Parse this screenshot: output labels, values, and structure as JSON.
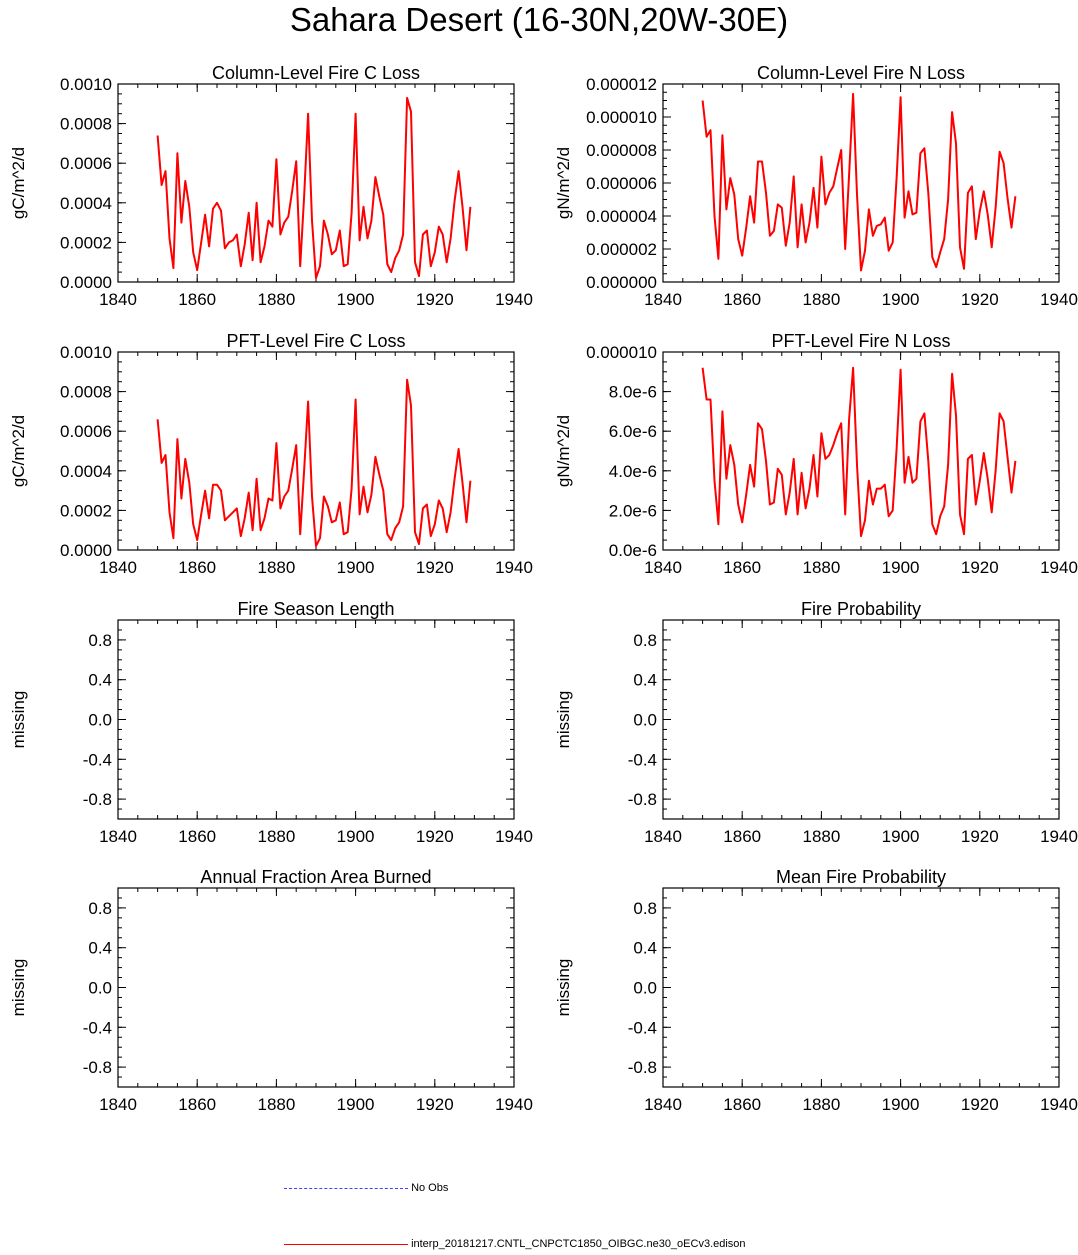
{
  "figure": {
    "title": "Sahara Desert (16-30N,20W-30E)"
  },
  "legend": {
    "items": [
      {
        "label": "No Obs",
        "style": "dashed",
        "color": "#4040ff"
      },
      {
        "label": "interp_20181217.CNTL_CNPCTC1850_OIBGC.ne30_oECv3.edison",
        "style": "solid",
        "color": "#ff0000"
      }
    ]
  },
  "chart_data": [
    {
      "type": "line",
      "title": "Column-Level Fire C Loss",
      "ylabel": "gC/m^2/d",
      "xlim": [
        1840,
        1940
      ],
      "ylim": [
        0,
        0.001
      ],
      "xticks": [
        1840,
        1860,
        1880,
        1900,
        1920,
        1940
      ],
      "xtick_labels": [
        "1840",
        "1860",
        "1880",
        "1900",
        "1920",
        "1940"
      ],
      "yticks": [
        0,
        0.0002,
        0.0004,
        0.0006,
        0.0008,
        0.001
      ],
      "ytick_labels": [
        "0.0000",
        "0.0002",
        "0.0004",
        "0.0006",
        "0.0008",
        "0.0010"
      ],
      "series": [
        {
          "name": "interp_20181217.CNTL_CNPCTC1850_OIBGC.ne30_oECv3.edison",
          "color": "#ff0000",
          "x": [
            1850,
            1851,
            1852,
            1853,
            1854,
            1855,
            1856,
            1857,
            1858,
            1859,
            1860,
            1861,
            1862,
            1863,
            1864,
            1865,
            1866,
            1867,
            1868,
            1869,
            1870,
            1871,
            1872,
            1873,
            1874,
            1875,
            1876,
            1877,
            1878,
            1879,
            1880,
            1881,
            1882,
            1883,
            1884,
            1885,
            1886,
            1887,
            1888,
            1889,
            1890,
            1891,
            1892,
            1893,
            1894,
            1895,
            1896,
            1897,
            1898,
            1899,
            1900,
            1901,
            1902,
            1903,
            1904,
            1905,
            1906,
            1907,
            1908,
            1909,
            1910,
            1911,
            1912,
            1913,
            1914,
            1915,
            1916,
            1917,
            1918,
            1919,
            1920,
            1921,
            1922,
            1923,
            1924,
            1925,
            1926,
            1927,
            1928,
            1929
          ],
          "values": [
            0.00074,
            0.00049,
            0.00056,
            0.00022,
            7e-05,
            0.00065,
            0.0003,
            0.00051,
            0.00038,
            0.00015,
            6e-05,
            0.0002,
            0.00034,
            0.00018,
            0.00037,
            0.0004,
            0.00036,
            0.00017,
            0.0002,
            0.00021,
            0.00024,
            8e-05,
            0.00019,
            0.00035,
            0.00011,
            0.0004,
            0.0001,
            0.00018,
            0.00031,
            0.00028,
            0.00062,
            0.00024,
            0.0003,
            0.00033,
            0.00046,
            0.00061,
            8e-05,
            0.00043,
            0.00085,
            0.00031,
            2e-05,
            8e-05,
            0.00031,
            0.00024,
            0.00014,
            0.00016,
            0.00026,
            8e-05,
            9e-05,
            0.00035,
            0.00085,
            0.00021,
            0.00038,
            0.00022,
            0.00031,
            0.00053,
            0.00043,
            0.00034,
            9e-05,
            5e-05,
            0.00012,
            0.00016,
            0.00024,
            0.00093,
            0.00086,
            0.0001,
            3e-05,
            0.00024,
            0.00026,
            8e-05,
            0.00015,
            0.00028,
            0.00024,
            0.0001,
            0.00022,
            0.00041,
            0.00056,
            0.00038,
            0.00016,
            0.00038
          ]
        }
      ]
    },
    {
      "type": "line",
      "title": "Column-Level Fire N Loss",
      "ylabel": "gN/m^2/d",
      "xlim": [
        1840,
        1940
      ],
      "ylim": [
        0,
        1.2e-05
      ],
      "xticks": [
        1840,
        1860,
        1880,
        1900,
        1920,
        1940
      ],
      "xtick_labels": [
        "1840",
        "1860",
        "1880",
        "1900",
        "1920",
        "1940"
      ],
      "yticks": [
        0,
        2e-06,
        4e-06,
        6e-06,
        8e-06,
        1e-05,
        1.2e-05
      ],
      "ytick_labels": [
        "0.000000",
        "0.000002",
        "0.000004",
        "0.000006",
        "0.000008",
        "0.000010",
        "0.000012"
      ],
      "series": [
        {
          "name": "interp_20181217.CNTL_CNPCTC1850_OIBGC.ne30_oECv3.edison",
          "color": "#ff0000",
          "x": [
            1850,
            1851,
            1852,
            1853,
            1854,
            1855,
            1856,
            1857,
            1858,
            1859,
            1860,
            1861,
            1862,
            1863,
            1864,
            1865,
            1866,
            1867,
            1868,
            1869,
            1870,
            1871,
            1872,
            1873,
            1874,
            1875,
            1876,
            1877,
            1878,
            1879,
            1880,
            1881,
            1882,
            1883,
            1884,
            1885,
            1886,
            1887,
            1888,
            1889,
            1890,
            1891,
            1892,
            1893,
            1894,
            1895,
            1896,
            1897,
            1898,
            1899,
            1900,
            1901,
            1902,
            1903,
            1904,
            1905,
            1906,
            1907,
            1908,
            1909,
            1910,
            1911,
            1912,
            1913,
            1914,
            1915,
            1916,
            1917,
            1918,
            1919,
            1920,
            1921,
            1922,
            1923,
            1924,
            1925,
            1926,
            1927,
            1928,
            1929
          ],
          "values": [
            1.1e-05,
            8.8e-06,
            9.2e-06,
            4e-06,
            1.4e-06,
            8.9e-06,
            4.4e-06,
            6.3e-06,
            5.3e-06,
            2.6e-06,
            1.6e-06,
            3.3e-06,
            5.2e-06,
            3.6e-06,
            7.3e-06,
            7.3e-06,
            5.4e-06,
            2.8e-06,
            3.1e-06,
            4.7e-06,
            4.5e-06,
            2.2e-06,
            3.6e-06,
            6.4e-06,
            2.1e-06,
            4.7e-06,
            2.4e-06,
            3.6e-06,
            5.7e-06,
            3.3e-06,
            7.6e-06,
            4.7e-06,
            5.4e-06,
            5.8e-06,
            6.9e-06,
            8e-06,
            2e-06,
            6.5e-06,
            1.14e-05,
            5.3e-06,
            7e-07,
            1.9e-06,
            4.4e-06,
            2.8e-06,
            3.4e-06,
            3.5e-06,
            3.9e-06,
            1.9e-06,
            2.4e-06,
            6.3e-06,
            1.12e-05,
            3.9e-06,
            5.5e-06,
            4.1e-06,
            4.2e-06,
            7.8e-06,
            8.1e-06,
            5.4e-06,
            1.5e-06,
            9e-07,
            1.8e-06,
            2.6e-06,
            5e-06,
            1.03e-05,
            8.4e-06,
            2.1e-06,
            8e-07,
            5.4e-06,
            5.8e-06,
            2.6e-06,
            4.3e-06,
            5.5e-06,
            4.1e-06,
            2.1e-06,
            4.5e-06,
            7.9e-06,
            7.2e-06,
            5.1e-06,
            3.3e-06,
            5.2e-06
          ]
        }
      ]
    },
    {
      "type": "line",
      "title": "PFT-Level Fire C Loss",
      "ylabel": "gC/m^2/d",
      "xlim": [
        1840,
        1940
      ],
      "ylim": [
        0,
        0.001
      ],
      "xticks": [
        1840,
        1860,
        1880,
        1900,
        1920,
        1940
      ],
      "xtick_labels": [
        "1840",
        "1860",
        "1880",
        "1900",
        "1920",
        "1940"
      ],
      "yticks": [
        0,
        0.0002,
        0.0004,
        0.0006,
        0.0008,
        0.001
      ],
      "ytick_labels": [
        "0.0000",
        "0.0002",
        "0.0004",
        "0.0006",
        "0.0008",
        "0.0010"
      ],
      "series": [
        {
          "name": "interp_20181217.CNTL_CNPCTC1850_OIBGC.ne30_oECv3.edison",
          "color": "#ff0000",
          "x": [
            1850,
            1851,
            1852,
            1853,
            1854,
            1855,
            1856,
            1857,
            1858,
            1859,
            1860,
            1861,
            1862,
            1863,
            1864,
            1865,
            1866,
            1867,
            1868,
            1869,
            1870,
            1871,
            1872,
            1873,
            1874,
            1875,
            1876,
            1877,
            1878,
            1879,
            1880,
            1881,
            1882,
            1883,
            1884,
            1885,
            1886,
            1887,
            1888,
            1889,
            1890,
            1891,
            1892,
            1893,
            1894,
            1895,
            1896,
            1897,
            1898,
            1899,
            1900,
            1901,
            1902,
            1903,
            1904,
            1905,
            1906,
            1907,
            1908,
            1909,
            1910,
            1911,
            1912,
            1913,
            1914,
            1915,
            1916,
            1917,
            1918,
            1919,
            1920,
            1921,
            1922,
            1923,
            1924,
            1925,
            1926,
            1927,
            1928,
            1929
          ],
          "values": [
            0.00066,
            0.00044,
            0.00048,
            0.00019,
            6e-05,
            0.00056,
            0.00026,
            0.00046,
            0.00034,
            0.00013,
            5e-05,
            0.00018,
            0.0003,
            0.00016,
            0.00033,
            0.00033,
            0.0003,
            0.00015,
            0.00017,
            0.00019,
            0.00021,
            7e-05,
            0.00016,
            0.00029,
            0.0001,
            0.00036,
            0.0001,
            0.00016,
            0.00026,
            0.00025,
            0.00054,
            0.00021,
            0.00027,
            0.0003,
            0.00041,
            0.00053,
            8e-05,
            0.0004,
            0.00075,
            0.00027,
            2e-05,
            6e-05,
            0.00027,
            0.00022,
            0.00014,
            0.00015,
            0.00024,
            8e-05,
            9e-05,
            0.00031,
            0.00076,
            0.00018,
            0.00032,
            0.00019,
            0.00028,
            0.00047,
            0.00038,
            0.0003,
            8e-05,
            5e-05,
            0.00011,
            0.00014,
            0.00022,
            0.00086,
            0.00073,
            9e-05,
            3e-05,
            0.00021,
            0.00023,
            7e-05,
            0.00013,
            0.00025,
            0.00021,
            9e-05,
            0.00019,
            0.00036,
            0.00051,
            0.00034,
            0.00014,
            0.00035
          ]
        }
      ]
    },
    {
      "type": "line",
      "title": "PFT-Level Fire N Loss",
      "ylabel": "gN/m^2/d",
      "xlim": [
        1840,
        1940
      ],
      "ylim": [
        0,
        1e-05
      ],
      "xticks": [
        1840,
        1860,
        1880,
        1900,
        1920,
        1940
      ],
      "xtick_labels": [
        "1840",
        "1860",
        "1880",
        "1900",
        "1920",
        "1940"
      ],
      "yticks": [
        0,
        2e-06,
        4e-06,
        6e-06,
        8e-06,
        1e-05
      ],
      "ytick_labels": [
        "0.0e-6",
        "2.0e-6",
        "4.0e-6",
        "6.0e-6",
        "8.0e-6",
        "0.000010"
      ],
      "series": [
        {
          "name": "interp_20181217.CNTL_CNPCTC1850_OIBGC.ne30_oECv3.edison",
          "color": "#ff0000",
          "x": [
            1850,
            1851,
            1852,
            1853,
            1854,
            1855,
            1856,
            1857,
            1858,
            1859,
            1860,
            1861,
            1862,
            1863,
            1864,
            1865,
            1866,
            1867,
            1868,
            1869,
            1870,
            1871,
            1872,
            1873,
            1874,
            1875,
            1876,
            1877,
            1878,
            1879,
            1880,
            1881,
            1882,
            1883,
            1884,
            1885,
            1886,
            1887,
            1888,
            1889,
            1890,
            1891,
            1892,
            1893,
            1894,
            1895,
            1896,
            1897,
            1898,
            1899,
            1900,
            1901,
            1902,
            1903,
            1904,
            1905,
            1906,
            1907,
            1908,
            1909,
            1910,
            1911,
            1912,
            1913,
            1914,
            1915,
            1916,
            1917,
            1918,
            1919,
            1920,
            1921,
            1922,
            1923,
            1924,
            1925,
            1926,
            1927,
            1928,
            1929
          ],
          "values": [
            9.2e-06,
            7.6e-06,
            7.6e-06,
            3.5e-06,
            1.3e-06,
            7e-06,
            3.6e-06,
            5.3e-06,
            4.3e-06,
            2.3e-06,
            1.4e-06,
            2.8e-06,
            4.3e-06,
            3.2e-06,
            6.4e-06,
            6.1e-06,
            4.5e-06,
            2.3e-06,
            2.4e-06,
            4.1e-06,
            3.8e-06,
            1.8e-06,
            2.9e-06,
            4.6e-06,
            1.8e-06,
            3.9e-06,
            2.1e-06,
            3.1e-06,
            4.8e-06,
            2.7e-06,
            5.9e-06,
            4.6e-06,
            4.8e-06,
            5.3e-06,
            5.9e-06,
            6.4e-06,
            1.8e-06,
            6.6e-06,
            9.2e-06,
            4.3e-06,
            7e-07,
            1.5e-06,
            3.5e-06,
            2.3e-06,
            3.1e-06,
            3.1e-06,
            3.3e-06,
            1.7e-06,
            2e-06,
            5.1e-06,
            9.1e-06,
            3.4e-06,
            4.7e-06,
            3.4e-06,
            3.6e-06,
            6.5e-06,
            6.9e-06,
            4.5e-06,
            1.3e-06,
            8e-07,
            1.7e-06,
            2.2e-06,
            4.3e-06,
            8.9e-06,
            6.8e-06,
            1.8e-06,
            8e-07,
            4.6e-06,
            4.8e-06,
            2.3e-06,
            3.5e-06,
            4.9e-06,
            3.6e-06,
            1.9e-06,
            4e-06,
            6.9e-06,
            6.5e-06,
            4.7e-06,
            2.9e-06,
            4.5e-06
          ]
        }
      ]
    },
    {
      "type": "line",
      "title": "Fire Season Length",
      "ylabel": "missing",
      "xlim": [
        1840,
        1940
      ],
      "ylim": [
        -1,
        1
      ],
      "xticks": [
        1840,
        1860,
        1880,
        1900,
        1920,
        1940
      ],
      "xtick_labels": [
        "1840",
        "1860",
        "1880",
        "1900",
        "1920",
        "1940"
      ],
      "yticks": [
        -0.8,
        -0.4,
        0,
        0.4,
        0.8
      ],
      "ytick_labels": [
        "-0.8",
        "-0.4",
        "0.0",
        "0.4",
        "0.8"
      ],
      "series": []
    },
    {
      "type": "line",
      "title": "Fire Probability",
      "ylabel": "missing",
      "xlim": [
        1840,
        1940
      ],
      "ylim": [
        -1,
        1
      ],
      "xticks": [
        1840,
        1860,
        1880,
        1900,
        1920,
        1940
      ],
      "xtick_labels": [
        "1840",
        "1860",
        "1880",
        "1900",
        "1920",
        "1940"
      ],
      "yticks": [
        -0.8,
        -0.4,
        0,
        0.4,
        0.8
      ],
      "ytick_labels": [
        "-0.8",
        "-0.4",
        "0.0",
        "0.4",
        "0.8"
      ],
      "series": []
    },
    {
      "type": "line",
      "title": "Annual Fraction Area Burned",
      "ylabel": "missing",
      "xlim": [
        1840,
        1940
      ],
      "ylim": [
        -1,
        1
      ],
      "xticks": [
        1840,
        1860,
        1880,
        1900,
        1920,
        1940
      ],
      "xtick_labels": [
        "1840",
        "1860",
        "1880",
        "1900",
        "1920",
        "1940"
      ],
      "yticks": [
        -0.8,
        -0.4,
        0,
        0.4,
        0.8
      ],
      "ytick_labels": [
        "-0.8",
        "-0.4",
        "0.0",
        "0.4",
        "0.8"
      ],
      "series": []
    },
    {
      "type": "line",
      "title": "Mean Fire Probability",
      "ylabel": "missing",
      "xlim": [
        1840,
        1940
      ],
      "ylim": [
        -1,
        1
      ],
      "xticks": [
        1840,
        1860,
        1880,
        1900,
        1920,
        1940
      ],
      "xtick_labels": [
        "1840",
        "1860",
        "1880",
        "1900",
        "1920",
        "1940"
      ],
      "yticks": [
        -0.8,
        -0.4,
        0,
        0.4,
        0.8
      ],
      "ytick_labels": [
        "-0.8",
        "-0.4",
        "0.0",
        "0.4",
        "0.8"
      ],
      "series": []
    }
  ]
}
